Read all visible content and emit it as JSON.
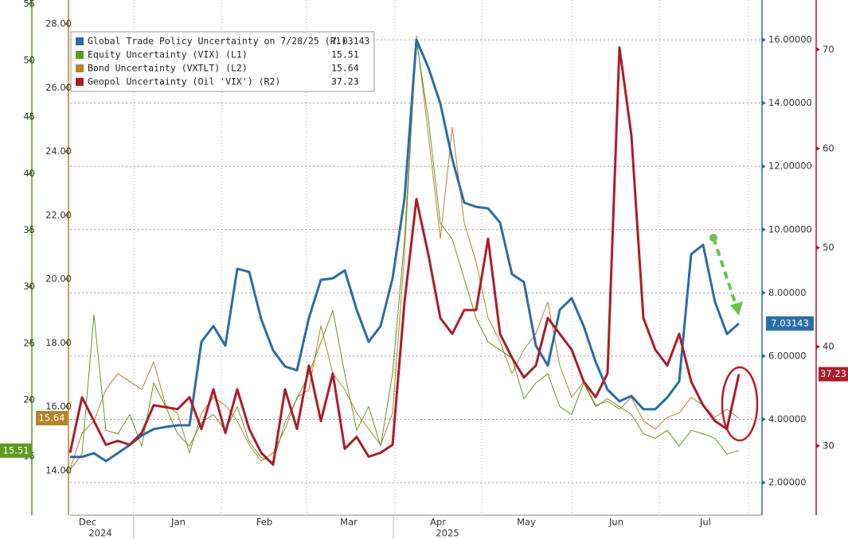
{
  "chart_data": {
    "type": "line",
    "x_labels": [
      "Dec",
      "Jan",
      "Feb",
      "Mar",
      "Apr",
      "May",
      "Jun",
      "Jul"
    ],
    "year_labels": [
      "2024",
      "2025"
    ],
    "axes": {
      "L1": {
        "color": "#5e9a1e",
        "ylim": [
          9.8,
          55.35
        ],
        "yticks": [
          15,
          20,
          25,
          30,
          35,
          40,
          45,
          50,
          55
        ]
      },
      "L2": {
        "color": "#b5832a",
        "ylim": [
          12.6,
          28.75
        ],
        "yticks": [
          {
            "value": 14,
            "label": "14.00"
          },
          {
            "value": 16,
            "label": "16.00"
          },
          {
            "value": 18,
            "label": "18.00"
          },
          {
            "value": 20,
            "label": "20.00"
          },
          {
            "value": 22,
            "label": "22.00"
          },
          {
            "value": 24,
            "label": "24.00"
          },
          {
            "value": 26,
            "label": "26.00"
          },
          {
            "value": 28,
            "label": "28.00"
          }
        ]
      },
      "R1": {
        "color": "#2b6ca6",
        "ylim": [
          0.97,
          17.26
        ],
        "grid": true,
        "yticks": [
          {
            "value": 2,
            "label": "2.00000"
          },
          {
            "value": 4,
            "label": "4.00000"
          },
          {
            "value": 6,
            "label": "6.00000"
          },
          {
            "value": 8,
            "label": "8.00000"
          },
          {
            "value": 10,
            "label": "10.00000"
          },
          {
            "value": 12,
            "label": "12.00000"
          },
          {
            "value": 14,
            "label": "14.00000"
          },
          {
            "value": 16,
            "label": "16.00000"
          }
        ]
      },
      "R2": {
        "color": "#ad1c2b",
        "ylim": [
          23,
          75
        ],
        "yticks": [
          30,
          40,
          50,
          60,
          70
        ]
      }
    },
    "series": [
      {
        "name": "Global Trade Policy Uncertainty on 7/28/25 (R1)",
        "axis": "R1",
        "color": "#2b6ca6",
        "width": 3,
        "values": [
          2.81,
          2.81,
          2.93,
          2.68,
          2.93,
          3.19,
          3.49,
          3.69,
          3.76,
          3.81,
          3.81,
          6.45,
          6.95,
          6.33,
          8.76,
          8.66,
          7.17,
          6.18,
          5.67,
          5.55,
          7.21,
          8.41,
          8.46,
          8.71,
          7.46,
          6.45,
          6.95,
          8.46,
          10.97,
          16.0,
          15.12,
          13.99,
          12.23,
          10.85,
          10.72,
          10.67,
          10.22,
          8.59,
          8.34,
          6.33,
          5.7,
          7.46,
          7.83,
          6.95,
          5.82,
          4.94,
          4.57,
          4.74,
          4.32,
          4.32,
          4.69,
          5.2,
          9.22,
          9.52,
          7.71,
          6.7,
          7.03143
        ]
      },
      {
        "name": "Equity Uncertainty (VIX) (L1)",
        "axis": "L1",
        "color": "#5e9a1e",
        "width": 1,
        "values": [
          13.8,
          15.2,
          27.5,
          17.3,
          17.0,
          18.7,
          15.9,
          21.5,
          19.4,
          17.0,
          15.9,
          18.0,
          18.7,
          17.3,
          19.4,
          16.3,
          14.9,
          14.5,
          18.0,
          20.1,
          22.3,
          25.1,
          27.9,
          22.3,
          17.3,
          19.4,
          15.9,
          22.3,
          34.2,
          51.8,
          44.8,
          35.6,
          34.2,
          30.7,
          27.2,
          25.1,
          24.4,
          23.7,
          20.1,
          21.5,
          22.3,
          19.4,
          18.7,
          21.5,
          19.4,
          20.1,
          19.4,
          18.7,
          17.0,
          16.6,
          17.3,
          15.9,
          17.3,
          17.0,
          16.6,
          15.2,
          15.51
        ]
      },
      {
        "name": "Bond Uncertainty (VXTLT) (L2)",
        "axis": "L2",
        "color": "#b5832a",
        "width": 1,
        "values": [
          14.05,
          15.17,
          15.55,
          16.54,
          17.04,
          16.79,
          16.54,
          17.41,
          16.05,
          15.8,
          14.55,
          15.8,
          16.29,
          16.05,
          15.55,
          14.8,
          14.3,
          14.55,
          15.3,
          16.29,
          16.54,
          18.54,
          17.04,
          16.54,
          15.8,
          15.3,
          14.8,
          15.8,
          20.78,
          27.63,
          24.51,
          21.27,
          24.76,
          21.77,
          20.53,
          18.78,
          18.04,
          17.04,
          17.79,
          18.29,
          19.28,
          17.29,
          16.29,
          16.79,
          16.05,
          16.17,
          15.92,
          16.29,
          15.55,
          15.3,
          15.67,
          15.8,
          16.29,
          16.05,
          15.67,
          15.92,
          15.64
        ]
      },
      {
        "name": "Geopol Uncertainty (Oil 'VIX') (R2)",
        "axis": "R2",
        "color": "#ad1c2b",
        "width": 3,
        "values": [
          29.3,
          34.9,
          32.5,
          30.1,
          30.5,
          30.1,
          31.3,
          34.1,
          33.9,
          33.7,
          34.9,
          31.7,
          35.7,
          31.3,
          35.7,
          31.7,
          29.3,
          28.1,
          35.7,
          31.7,
          38.1,
          32.5,
          37.3,
          29.7,
          30.9,
          28.9,
          29.3,
          30.1,
          44.5,
          54.9,
          49.3,
          42.9,
          41.3,
          43.7,
          43.7,
          50.9,
          41.3,
          38.9,
          36.9,
          38.1,
          42.9,
          41.3,
          39.7,
          36.5,
          34.9,
          37.3,
          70.2,
          61.3,
          42.9,
          39.7,
          38.1,
          41.3,
          36.5,
          34.1,
          32.5,
          31.7,
          37.23
        ]
      }
    ]
  }
}
